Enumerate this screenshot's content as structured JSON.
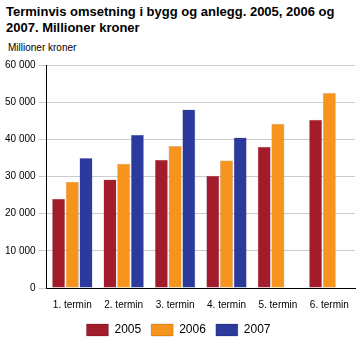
{
  "chart_data": {
    "type": "bar",
    "title": "Terminvis omsetning i bygg og anlegg. 2005, 2006 og 2007. Millioner kroner",
    "y_label": "Millioner kroner",
    "categories": [
      "1. termin",
      "2. termin",
      "3. termin",
      "4. termin",
      "5. termin",
      "6. termin"
    ],
    "series": [
      {
        "name": "2005",
        "color": "#a31c2b",
        "values": [
          24000,
          29200,
          34500,
          30200,
          38000,
          45300
        ]
      },
      {
        "name": "2006",
        "color": "#f7941d",
        "values": [
          28600,
          33400,
          38200,
          34300,
          44200,
          52500
        ]
      },
      {
        "name": "2007",
        "color": "#2b3a9c",
        "values": [
          35000,
          41200,
          48000,
          40500,
          null,
          null
        ]
      }
    ],
    "ylim": [
      0,
      60000
    ],
    "yticks": [
      0,
      {
        "value": 10000,
        "label": "10 000"
      },
      {
        "value": 20000,
        "label": "20 000"
      },
      {
        "value": 30000,
        "label": "30 000"
      },
      {
        "value": 40000,
        "label": "40 000"
      },
      {
        "value": 50000,
        "label": "50 000"
      },
      {
        "value": 60000,
        "label": "60 000"
      }
    ],
    "grid": true,
    "legend": "bottom"
  }
}
